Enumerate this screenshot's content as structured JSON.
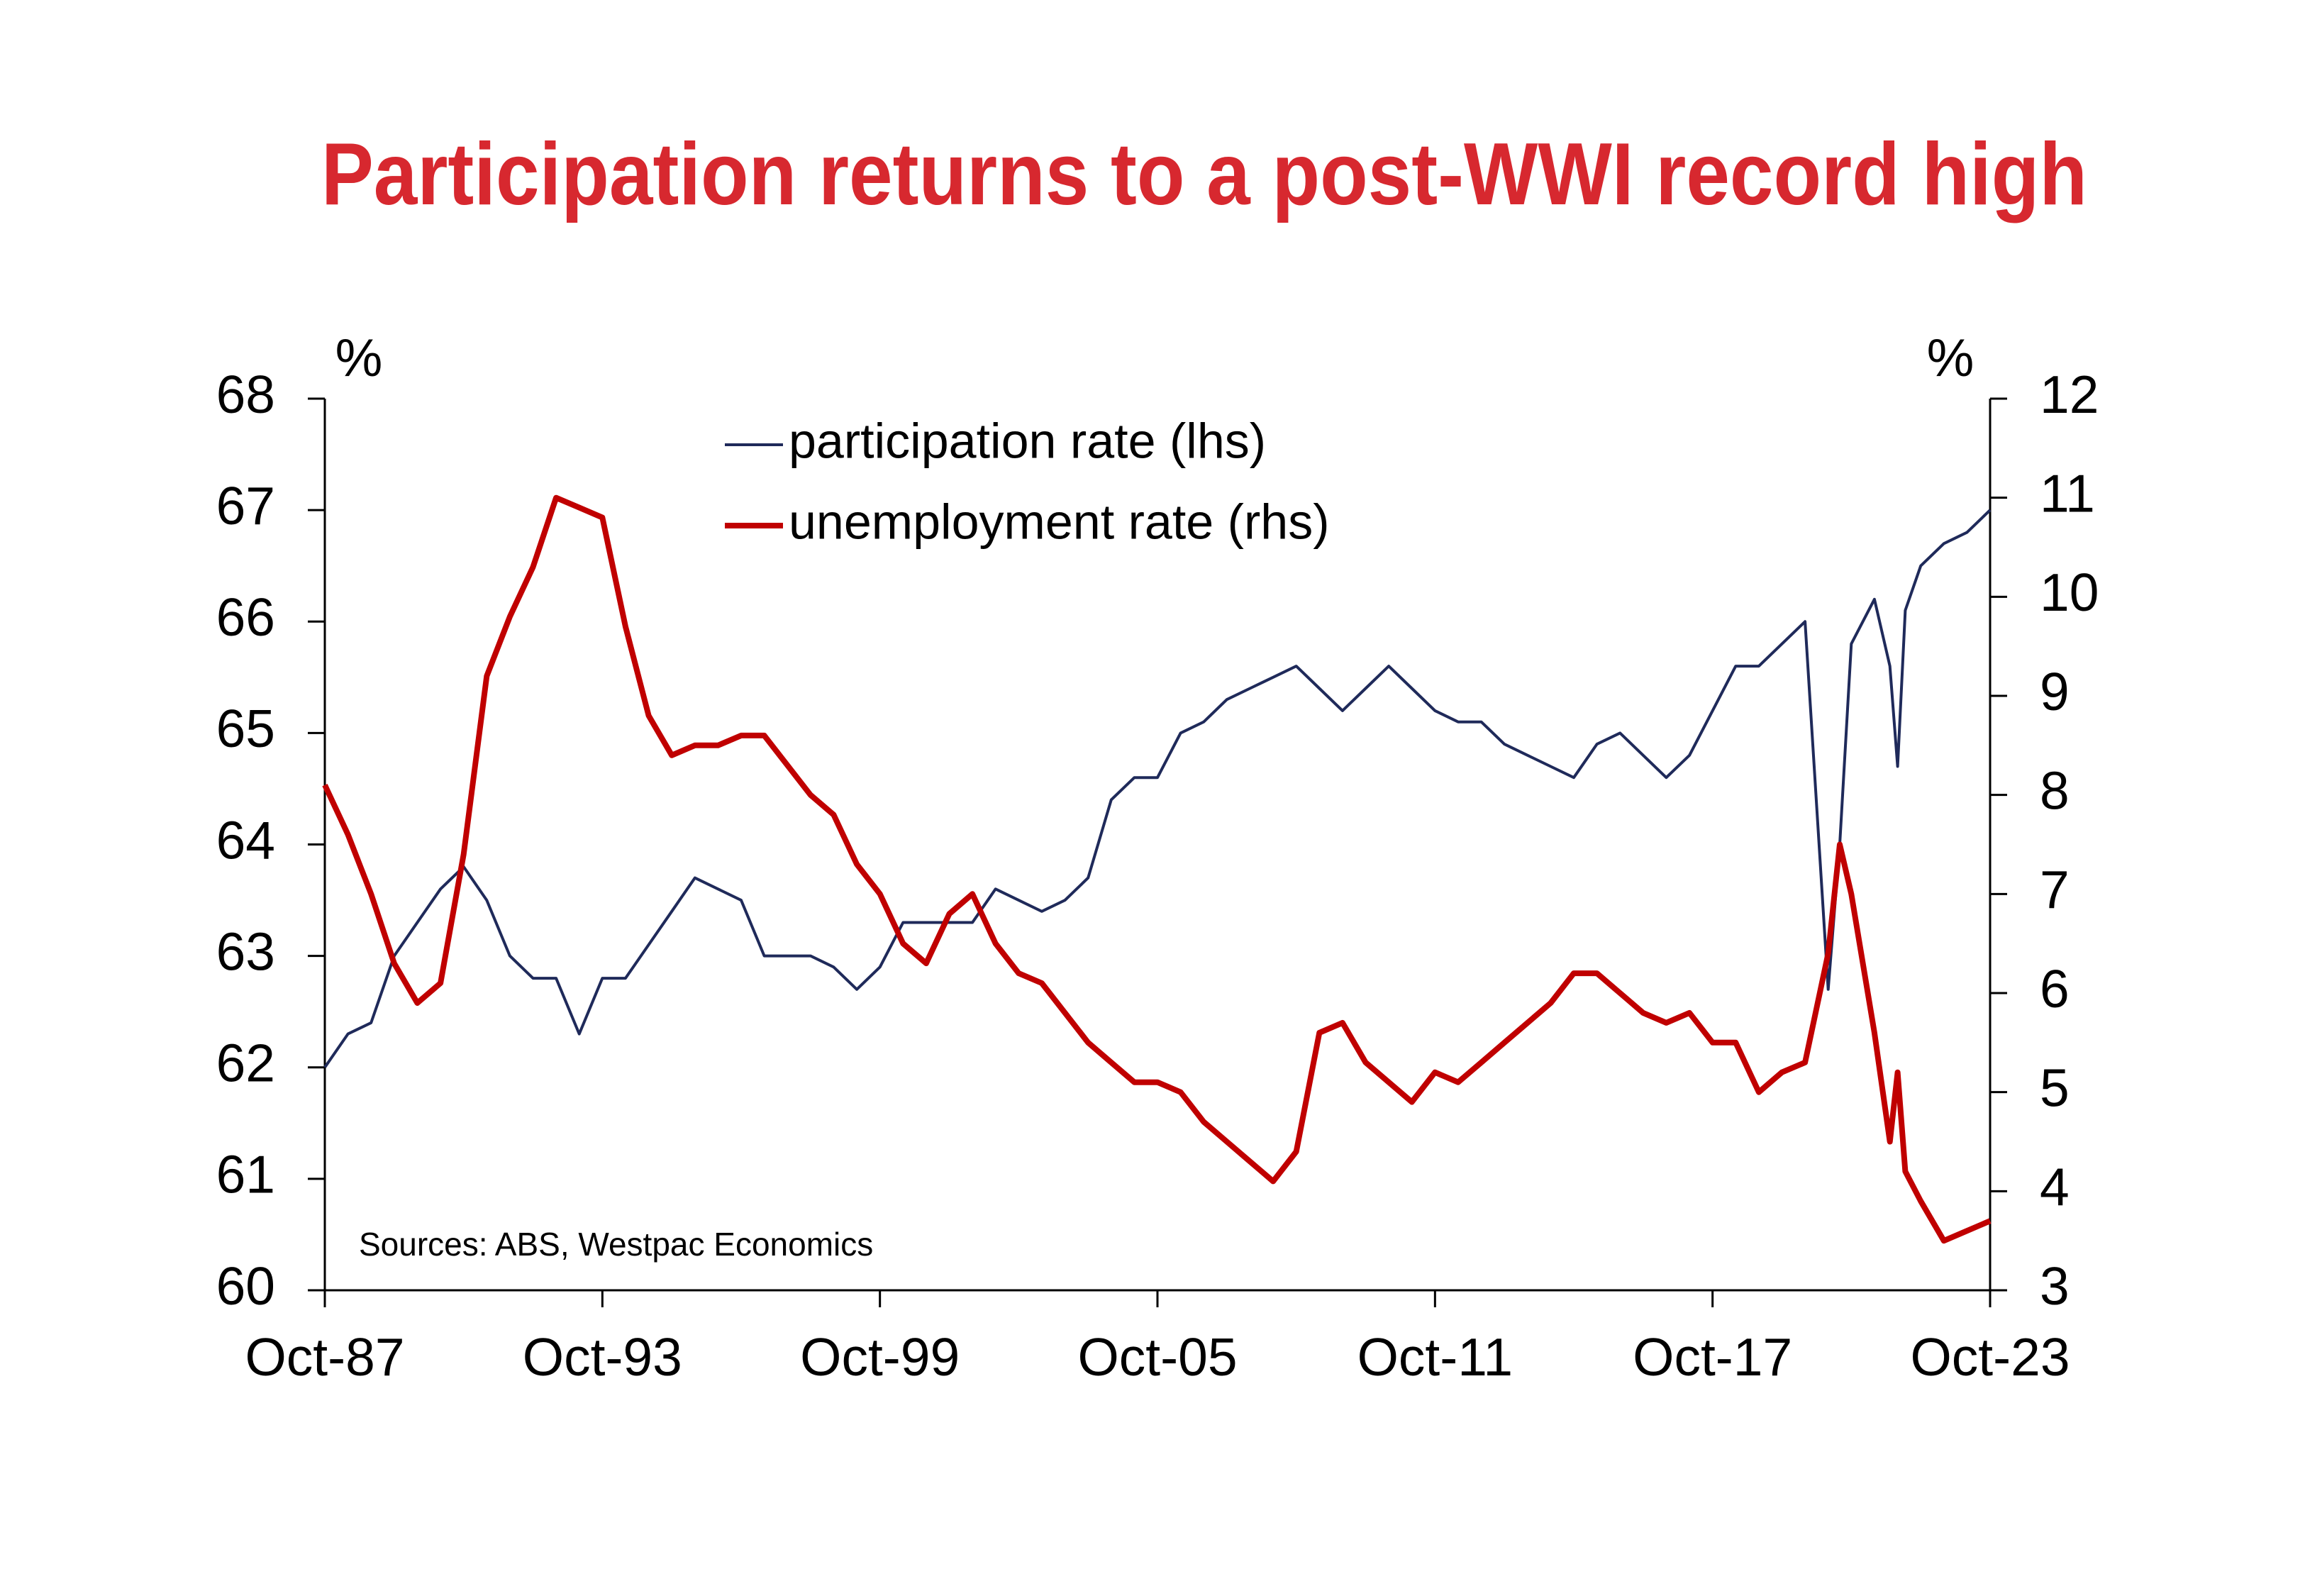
{
  "chart_data": {
    "type": "line",
    "title": "Participation returns to a post-WWI record high",
    "ylabel": "%",
    "y2label": "%",
    "annotation": "Sources: ABS, Westpac Economics",
    "x": [
      "1987-10",
      "1988-04",
      "1988-10",
      "1989-04",
      "1989-10",
      "1990-04",
      "1990-10",
      "1991-04",
      "1991-10",
      "1992-04",
      "1992-10",
      "1993-04",
      "1993-10",
      "1994-04",
      "1994-10",
      "1995-04",
      "1995-10",
      "1996-04",
      "1996-10",
      "1997-04",
      "1997-10",
      "1998-04",
      "1998-10",
      "1999-04",
      "1999-10",
      "2000-04",
      "2000-10",
      "2001-04",
      "2001-10",
      "2002-04",
      "2002-10",
      "2003-04",
      "2003-10",
      "2004-04",
      "2004-10",
      "2005-04",
      "2005-10",
      "2006-04",
      "2006-10",
      "2007-04",
      "2007-10",
      "2008-04",
      "2008-10",
      "2009-04",
      "2009-10",
      "2010-04",
      "2010-10",
      "2011-04",
      "2011-10",
      "2012-04",
      "2012-10",
      "2013-04",
      "2013-10",
      "2014-04",
      "2014-10",
      "2015-04",
      "2015-10",
      "2016-04",
      "2016-10",
      "2017-04",
      "2017-10",
      "2018-04",
      "2018-10",
      "2019-04",
      "2019-10",
      "2020-04",
      "2020-07",
      "2020-10",
      "2021-04",
      "2021-08",
      "2021-10",
      "2021-12",
      "2022-04",
      "2022-10",
      "2023-04",
      "2023-10"
    ],
    "series": [
      {
        "name": "participation rate (lhs)",
        "color": "#1f2a5a",
        "axis": "y",
        "values": [
          62.0,
          62.3,
          62.4,
          63.0,
          63.3,
          63.6,
          63.8,
          63.5,
          63.0,
          62.8,
          62.8,
          62.3,
          62.8,
          62.8,
          63.1,
          63.4,
          63.7,
          63.6,
          63.5,
          63.0,
          63.0,
          63.0,
          62.9,
          62.7,
          62.9,
          63.3,
          63.3,
          63.3,
          63.3,
          63.6,
          63.5,
          63.4,
          63.5,
          63.7,
          64.4,
          64.6,
          64.6,
          65.0,
          65.1,
          65.3,
          65.4,
          65.5,
          65.6,
          65.4,
          65.2,
          65.4,
          65.6,
          65.4,
          65.2,
          65.1,
          65.1,
          64.9,
          64.8,
          64.7,
          64.6,
          64.9,
          65.0,
          64.8,
          64.6,
          64.8,
          65.2,
          65.6,
          65.6,
          65.8,
          66.0,
          62.7,
          64.0,
          65.8,
          66.2,
          65.6,
          64.7,
          66.1,
          66.5,
          66.7,
          66.8,
          67.0
        ]
      },
      {
        "name": "unemployment rate (rhs)",
        "color": "#c00000",
        "axis": "y2",
        "values": [
          8.1,
          7.6,
          7.0,
          6.3,
          5.9,
          6.1,
          7.4,
          9.2,
          9.8,
          10.3,
          11.0,
          10.9,
          10.8,
          9.7,
          8.8,
          8.4,
          8.5,
          8.5,
          8.6,
          8.6,
          8.3,
          8.0,
          7.8,
          7.3,
          7.0,
          6.5,
          6.3,
          6.8,
          7.0,
          6.5,
          6.2,
          6.1,
          5.8,
          5.5,
          5.3,
          5.1,
          5.1,
          5.0,
          4.7,
          4.5,
          4.3,
          4.1,
          4.4,
          5.6,
          5.7,
          5.3,
          5.1,
          4.9,
          5.2,
          5.1,
          5.3,
          5.5,
          5.7,
          5.9,
          6.2,
          6.2,
          6.0,
          5.8,
          5.7,
          5.8,
          5.5,
          5.5,
          5.0,
          5.2,
          5.3,
          6.4,
          7.5,
          7.0,
          5.6,
          4.5,
          5.2,
          4.2,
          3.9,
          3.5,
          3.6,
          3.7
        ]
      }
    ],
    "xlim": [
      "1987-10",
      "2023-10"
    ],
    "xticks": [
      {
        "value": "1987-10",
        "label": "Oct-87"
      },
      {
        "value": "1993-10",
        "label": "Oct-93"
      },
      {
        "value": "1999-10",
        "label": "Oct-99"
      },
      {
        "value": "2005-10",
        "label": "Oct-05"
      },
      {
        "value": "2011-10",
        "label": "Oct-11"
      },
      {
        "value": "2017-10",
        "label": "Oct-17"
      },
      {
        "value": "2023-10",
        "label": "Oct-23"
      }
    ],
    "ylim": [
      60,
      68
    ],
    "yticks": [
      60,
      61,
      62,
      63,
      64,
      65,
      66,
      67,
      68
    ],
    "y2lim": [
      3,
      12
    ],
    "y2ticks": [
      3,
      4,
      5,
      6,
      7,
      8,
      9,
      10,
      11,
      12
    ],
    "grid": false
  }
}
